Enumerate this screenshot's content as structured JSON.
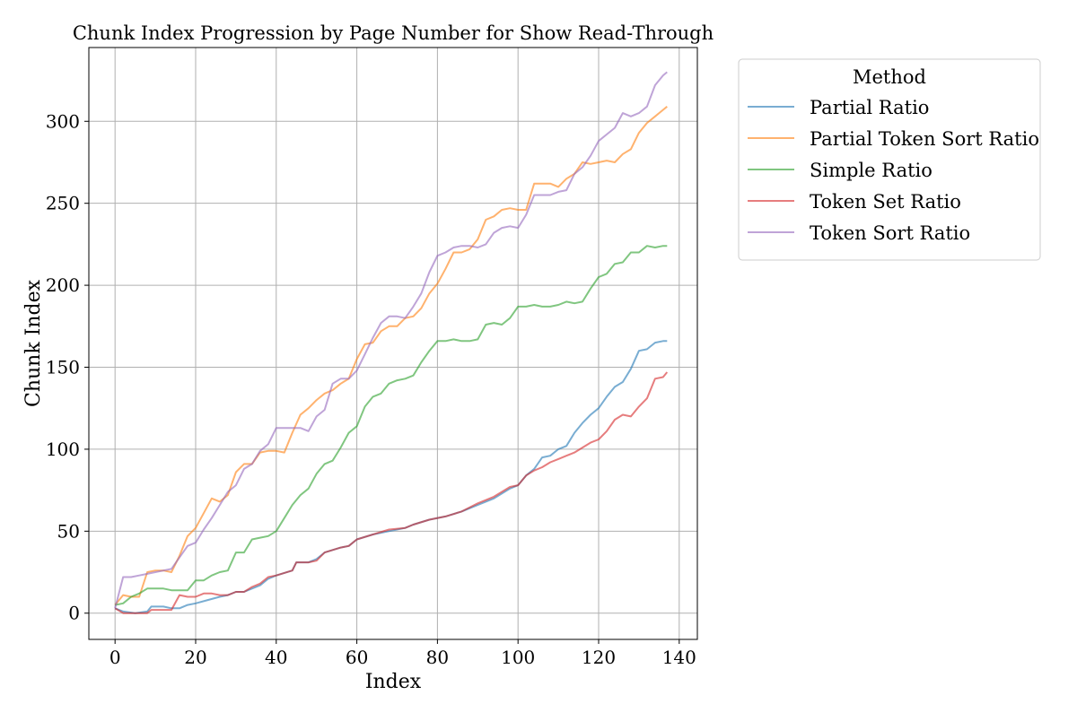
{
  "chart_data": {
    "type": "line",
    "title": "Chunk Index Progression by Page Number for Show Read-Through",
    "xlabel": "Index",
    "ylabel": "Chunk Index",
    "xlim": [
      -6.5,
      144.5
    ],
    "ylim": [
      -16,
      345
    ],
    "xticks": [
      0,
      20,
      40,
      60,
      80,
      100,
      120,
      140
    ],
    "yticks": [
      0,
      50,
      100,
      150,
      200,
      250,
      300
    ],
    "grid": true,
    "legend": {
      "title": "Method",
      "placement": "outside-top-right"
    },
    "series": [
      {
        "name": "Partial Ratio",
        "color": "#1f77b4",
        "points": [
          [
            0,
            3
          ],
          [
            2,
            1
          ],
          [
            5,
            0
          ],
          [
            8,
            1
          ],
          [
            9,
            4
          ],
          [
            12,
            4
          ],
          [
            14,
            3
          ],
          [
            16,
            3
          ],
          [
            18,
            5
          ],
          [
            20,
            6
          ],
          [
            23,
            8
          ],
          [
            26,
            10
          ],
          [
            28,
            11
          ],
          [
            30,
            13
          ],
          [
            32,
            13
          ],
          [
            34,
            15
          ],
          [
            36,
            17
          ],
          [
            38,
            21
          ],
          [
            40,
            23
          ],
          [
            44,
            26
          ],
          [
            45,
            31
          ],
          [
            48,
            31
          ],
          [
            50,
            33
          ],
          [
            52,
            37
          ],
          [
            56,
            40
          ],
          [
            58,
            41
          ],
          [
            60,
            45
          ],
          [
            64,
            48
          ],
          [
            68,
            50
          ],
          [
            72,
            52
          ],
          [
            74,
            54
          ],
          [
            78,
            57
          ],
          [
            82,
            59
          ],
          [
            86,
            62
          ],
          [
            90,
            66
          ],
          [
            94,
            70
          ],
          [
            98,
            76
          ],
          [
            100,
            78
          ],
          [
            102,
            84
          ],
          [
            104,
            88
          ],
          [
            106,
            95
          ],
          [
            108,
            96
          ],
          [
            110,
            100
          ],
          [
            112,
            102
          ],
          [
            114,
            110
          ],
          [
            116,
            116
          ],
          [
            118,
            121
          ],
          [
            120,
            125
          ],
          [
            122,
            132
          ],
          [
            124,
            138
          ],
          [
            126,
            141
          ],
          [
            128,
            149
          ],
          [
            130,
            160
          ],
          [
            132,
            161
          ],
          [
            134,
            165
          ],
          [
            136,
            166
          ],
          [
            137,
            166
          ]
        ]
      },
      {
        "name": "Partial Token Sort Ratio",
        "color": "#ff7f0e",
        "points": [
          [
            0,
            5
          ],
          [
            2,
            11
          ],
          [
            4,
            10
          ],
          [
            6,
            10
          ],
          [
            8,
            25
          ],
          [
            10,
            26
          ],
          [
            12,
            26
          ],
          [
            14,
            25
          ],
          [
            16,
            35
          ],
          [
            18,
            47
          ],
          [
            20,
            52
          ],
          [
            22,
            61
          ],
          [
            24,
            70
          ],
          [
            26,
            68
          ],
          [
            28,
            72
          ],
          [
            30,
            86
          ],
          [
            32,
            91
          ],
          [
            34,
            91
          ],
          [
            36,
            98
          ],
          [
            38,
            99
          ],
          [
            40,
            99
          ],
          [
            42,
            98
          ],
          [
            44,
            110
          ],
          [
            46,
            121
          ],
          [
            48,
            125
          ],
          [
            50,
            130
          ],
          [
            52,
            134
          ],
          [
            54,
            136
          ],
          [
            56,
            140
          ],
          [
            58,
            143
          ],
          [
            60,
            155
          ],
          [
            62,
            164
          ],
          [
            64,
            165
          ],
          [
            66,
            172
          ],
          [
            68,
            175
          ],
          [
            70,
            175
          ],
          [
            72,
            180
          ],
          [
            74,
            181
          ],
          [
            76,
            186
          ],
          [
            78,
            195
          ],
          [
            80,
            201
          ],
          [
            82,
            210
          ],
          [
            84,
            220
          ],
          [
            86,
            220
          ],
          [
            88,
            222
          ],
          [
            90,
            228
          ],
          [
            92,
            240
          ],
          [
            94,
            242
          ],
          [
            96,
            246
          ],
          [
            98,
            247
          ],
          [
            100,
            246
          ],
          [
            102,
            246
          ],
          [
            104,
            262
          ],
          [
            106,
            262
          ],
          [
            108,
            262
          ],
          [
            110,
            260
          ],
          [
            112,
            265
          ],
          [
            114,
            268
          ],
          [
            116,
            275
          ],
          [
            118,
            274
          ],
          [
            120,
            275
          ],
          [
            122,
            276
          ],
          [
            124,
            275
          ],
          [
            126,
            280
          ],
          [
            128,
            283
          ],
          [
            130,
            293
          ],
          [
            132,
            299
          ],
          [
            134,
            303
          ],
          [
            136,
            307
          ],
          [
            137,
            309
          ]
        ]
      },
      {
        "name": "Simple Ratio",
        "color": "#2ca02c",
        "points": [
          [
            0,
            5
          ],
          [
            2,
            6
          ],
          [
            4,
            10
          ],
          [
            6,
            12
          ],
          [
            8,
            15
          ],
          [
            10,
            15
          ],
          [
            12,
            15
          ],
          [
            14,
            14
          ],
          [
            16,
            14
          ],
          [
            18,
            14
          ],
          [
            20,
            20
          ],
          [
            22,
            20
          ],
          [
            24,
            23
          ],
          [
            26,
            25
          ],
          [
            28,
            26
          ],
          [
            30,
            37
          ],
          [
            32,
            37
          ],
          [
            34,
            45
          ],
          [
            36,
            46
          ],
          [
            38,
            47
          ],
          [
            40,
            50
          ],
          [
            42,
            58
          ],
          [
            44,
            66
          ],
          [
            46,
            72
          ],
          [
            48,
            76
          ],
          [
            50,
            85
          ],
          [
            52,
            91
          ],
          [
            54,
            93
          ],
          [
            56,
            101
          ],
          [
            58,
            110
          ],
          [
            60,
            114
          ],
          [
            62,
            126
          ],
          [
            64,
            132
          ],
          [
            66,
            134
          ],
          [
            68,
            140
          ],
          [
            70,
            142
          ],
          [
            72,
            143
          ],
          [
            74,
            145
          ],
          [
            76,
            153
          ],
          [
            78,
            160
          ],
          [
            80,
            166
          ],
          [
            82,
            166
          ],
          [
            84,
            167
          ],
          [
            86,
            166
          ],
          [
            88,
            166
          ],
          [
            90,
            167
          ],
          [
            92,
            176
          ],
          [
            94,
            177
          ],
          [
            96,
            176
          ],
          [
            98,
            180
          ],
          [
            100,
            187
          ],
          [
            102,
            187
          ],
          [
            104,
            188
          ],
          [
            106,
            187
          ],
          [
            108,
            187
          ],
          [
            110,
            188
          ],
          [
            112,
            190
          ],
          [
            114,
            189
          ],
          [
            116,
            190
          ],
          [
            118,
            198
          ],
          [
            120,
            205
          ],
          [
            122,
            207
          ],
          [
            124,
            213
          ],
          [
            126,
            214
          ],
          [
            128,
            220
          ],
          [
            130,
            220
          ],
          [
            132,
            224
          ],
          [
            134,
            223
          ],
          [
            136,
            224
          ],
          [
            137,
            224
          ]
        ]
      },
      {
        "name": "Token Set Ratio",
        "color": "#d62728",
        "points": [
          [
            0,
            3
          ],
          [
            2,
            0
          ],
          [
            5,
            0
          ],
          [
            8,
            0
          ],
          [
            9,
            2
          ],
          [
            12,
            2
          ],
          [
            14,
            2
          ],
          [
            16,
            11
          ],
          [
            18,
            10
          ],
          [
            20,
            10
          ],
          [
            22,
            12
          ],
          [
            24,
            12
          ],
          [
            26,
            11
          ],
          [
            28,
            11
          ],
          [
            30,
            13
          ],
          [
            32,
            13
          ],
          [
            34,
            16
          ],
          [
            36,
            18
          ],
          [
            38,
            22
          ],
          [
            40,
            23
          ],
          [
            44,
            26
          ],
          [
            45,
            31
          ],
          [
            48,
            31
          ],
          [
            50,
            32
          ],
          [
            52,
            37
          ],
          [
            56,
            40
          ],
          [
            58,
            41
          ],
          [
            60,
            45
          ],
          [
            64,
            48
          ],
          [
            68,
            51
          ],
          [
            72,
            52
          ],
          [
            74,
            54
          ],
          [
            78,
            57
          ],
          [
            82,
            59
          ],
          [
            86,
            62
          ],
          [
            90,
            67
          ],
          [
            94,
            71
          ],
          [
            98,
            77
          ],
          [
            100,
            78
          ],
          [
            102,
            84
          ],
          [
            104,
            87
          ],
          [
            106,
            89
          ],
          [
            108,
            92
          ],
          [
            110,
            94
          ],
          [
            112,
            96
          ],
          [
            114,
            98
          ],
          [
            116,
            101
          ],
          [
            118,
            104
          ],
          [
            120,
            106
          ],
          [
            122,
            111
          ],
          [
            124,
            118
          ],
          [
            126,
            121
          ],
          [
            128,
            120
          ],
          [
            130,
            126
          ],
          [
            132,
            131
          ],
          [
            134,
            143
          ],
          [
            136,
            144
          ],
          [
            137,
            147
          ]
        ]
      },
      {
        "name": "Token Sort Ratio",
        "color": "#9467bd",
        "points": [
          [
            0,
            3
          ],
          [
            2,
            22
          ],
          [
            4,
            22
          ],
          [
            6,
            23
          ],
          [
            8,
            24
          ],
          [
            10,
            25
          ],
          [
            12,
            26
          ],
          [
            14,
            27
          ],
          [
            16,
            34
          ],
          [
            18,
            41
          ],
          [
            20,
            43
          ],
          [
            22,
            51
          ],
          [
            24,
            58
          ],
          [
            26,
            66
          ],
          [
            28,
            74
          ],
          [
            30,
            78
          ],
          [
            32,
            88
          ],
          [
            34,
            91
          ],
          [
            36,
            99
          ],
          [
            38,
            103
          ],
          [
            40,
            113
          ],
          [
            42,
            113
          ],
          [
            44,
            113
          ],
          [
            46,
            113
          ],
          [
            48,
            111
          ],
          [
            50,
            120
          ],
          [
            52,
            124
          ],
          [
            54,
            140
          ],
          [
            56,
            143
          ],
          [
            58,
            143
          ],
          [
            60,
            148
          ],
          [
            62,
            158
          ],
          [
            64,
            168
          ],
          [
            66,
            177
          ],
          [
            68,
            181
          ],
          [
            70,
            181
          ],
          [
            72,
            180
          ],
          [
            74,
            187
          ],
          [
            76,
            195
          ],
          [
            78,
            208
          ],
          [
            80,
            218
          ],
          [
            82,
            220
          ],
          [
            84,
            223
          ],
          [
            86,
            224
          ],
          [
            88,
            224
          ],
          [
            90,
            223
          ],
          [
            92,
            225
          ],
          [
            94,
            232
          ],
          [
            96,
            235
          ],
          [
            98,
            236
          ],
          [
            100,
            235
          ],
          [
            102,
            243
          ],
          [
            104,
            255
          ],
          [
            106,
            255
          ],
          [
            108,
            255
          ],
          [
            110,
            257
          ],
          [
            112,
            258
          ],
          [
            114,
            268
          ],
          [
            116,
            272
          ],
          [
            118,
            279
          ],
          [
            120,
            288
          ],
          [
            122,
            292
          ],
          [
            124,
            296
          ],
          [
            126,
            305
          ],
          [
            128,
            303
          ],
          [
            130,
            305
          ],
          [
            132,
            309
          ],
          [
            134,
            322
          ],
          [
            136,
            328
          ],
          [
            137,
            330
          ]
        ]
      }
    ]
  }
}
